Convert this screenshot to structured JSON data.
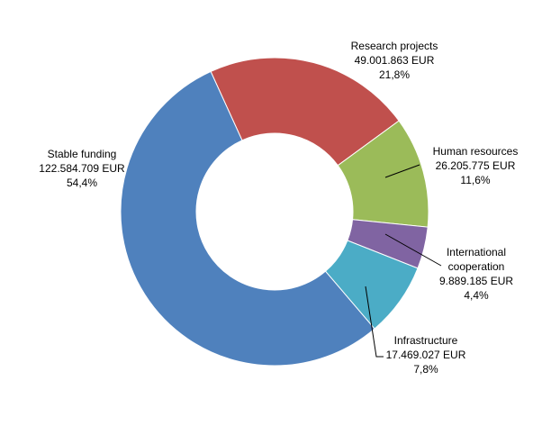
{
  "chart_data": {
    "type": "pie",
    "donut": true,
    "categories": [
      "Research projects",
      "Human resources",
      "International cooperation",
      "Infrastructure",
      "Stable funding"
    ],
    "series": [
      {
        "values": [
          49001863,
          26205775,
          9889185,
          17469027,
          122584709
        ],
        "value_labels": [
          "49.001.863 EUR",
          "26.205.775 EUR",
          "9.889.185 EUR",
          "17.469.027 EUR",
          "122.584.709 EUR"
        ],
        "percent_labels": [
          "21,8%",
          "11,6%",
          "4,4%",
          "7,8%",
          "54,4%"
        ]
      }
    ],
    "colors": [
      "#C0504D",
      "#9BBB59",
      "#8064A2",
      "#4BACC6",
      "#4F81BD"
    ],
    "legend": "none"
  },
  "labels": {
    "research": {
      "name": "Research projects",
      "value": "49.001.863 EUR",
      "pct": "21,8%"
    },
    "human": {
      "name": "Human resources",
      "value": "26.205.775 EUR",
      "pct": "11,6%"
    },
    "intl": {
      "name1": "International",
      "name2": "cooperation",
      "value": "9.889.185 EUR",
      "pct": "4,4%"
    },
    "infra": {
      "name": "Infrastructure",
      "value": "17.469.027 EUR",
      "pct": "7,8%"
    },
    "stable": {
      "name": "Stable funding",
      "value": "122.584.709 EUR",
      "pct": "54,4%"
    }
  }
}
